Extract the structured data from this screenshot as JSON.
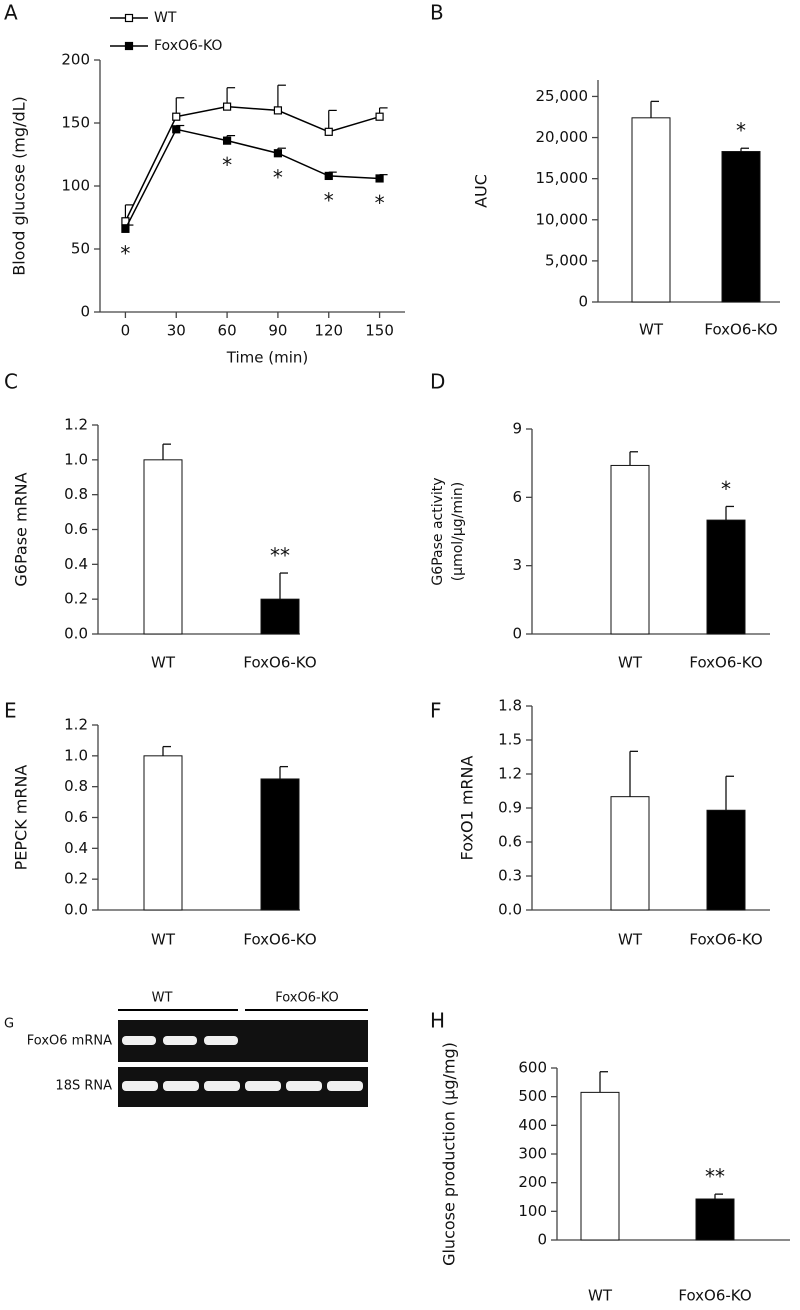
{
  "chart_data": [
    {
      "type": "line",
      "panel_label": "A",
      "ylabel": "Blood glucose (mg/dL)",
      "xlabel": "Time (min)",
      "x": [
        0,
        30,
        60,
        90,
        120,
        150
      ],
      "xlim": [
        -15,
        165
      ],
      "xticks": [
        0,
        30,
        60,
        90,
        120,
        150
      ],
      "ylim": [
        0,
        200
      ],
      "yticks": [
        0,
        50,
        100,
        150,
        200
      ],
      "series": [
        {
          "name": "WT",
          "color": "#000000",
          "marker_fill": "#ffffff",
          "values": [
            72,
            155,
            163,
            160,
            143,
            155
          ],
          "errors": [
            13,
            15,
            15,
            20,
            17,
            7
          ]
        },
        {
          "name": "FoxO6-KO",
          "color": "#000000",
          "marker_fill": "#000000",
          "values": [
            66,
            145,
            136,
            126,
            108,
            106
          ],
          "errors": [
            3,
            3,
            4,
            4,
            3,
            3
          ],
          "annotations": [
            "*",
            null,
            "*",
            "*",
            "*",
            "*"
          ]
        }
      ]
    },
    {
      "type": "bar",
      "panel_label": "B",
      "ylabel": "AUC",
      "categories": [
        "WT",
        "FoxO6-KO"
      ],
      "colors": [
        "#ffffff",
        "#000000"
      ],
      "values": [
        22400,
        18300
      ],
      "errors": [
        2000,
        400
      ],
      "annotations": [
        null,
        "*"
      ],
      "ylim": [
        0,
        27000
      ],
      "yticks": [
        0,
        {
          "value": 5000,
          "label": "5,000"
        },
        {
          "value": 10000,
          "label": "10,000"
        },
        {
          "value": 15000,
          "label": "15,000"
        },
        {
          "value": 20000,
          "label": "20,000"
        },
        {
          "value": 25000,
          "label": "25,000"
        }
      ]
    },
    {
      "type": "bar",
      "panel_label": "C",
      "ylabel": "G6Pase mRNA",
      "categories": [
        "WT",
        "FoxO6-KO"
      ],
      "colors": [
        "#ffffff",
        "#000000"
      ],
      "values": [
        1.0,
        0.2
      ],
      "errors": [
        0.09,
        0.15
      ],
      "annotations": [
        null,
        "**"
      ],
      "ylim": [
        0,
        1.2
      ],
      "yticks": [
        {
          "value": 0,
          "label": "0.0"
        },
        0.2,
        0.4,
        0.6,
        0.8,
        {
          "value": 1,
          "label": "1.0"
        },
        1.2
      ]
    },
    {
      "type": "bar",
      "panel_label": "D",
      "ylabel": [
        "G6Pase activity",
        "(µmol/µg/min)"
      ],
      "categories": [
        "WT",
        "FoxO6-KO"
      ],
      "colors": [
        "#ffffff",
        "#000000"
      ],
      "values": [
        7.4,
        5.0
      ],
      "errors": [
        0.6,
        0.6
      ],
      "annotations": [
        null,
        "*"
      ],
      "ylim": [
        0,
        9
      ],
      "yticks": [
        0,
        3,
        6,
        9
      ]
    },
    {
      "type": "bar",
      "panel_label": "E",
      "ylabel": "PEPCK mRNA",
      "categories": [
        "WT",
        "FoxO6-KO"
      ],
      "colors": [
        "#ffffff",
        "#000000"
      ],
      "values": [
        1.0,
        0.85
      ],
      "errors": [
        0.06,
        0.08
      ],
      "ylim": [
        0,
        1.2
      ],
      "yticks": [
        {
          "value": 0,
          "label": "0.0"
        },
        0.2,
        0.4,
        0.6,
        0.8,
        {
          "value": 1,
          "label": "1.0"
        },
        1.2
      ]
    },
    {
      "type": "bar",
      "panel_label": "F",
      "ylabel": "FoxO1 mRNA",
      "categories": [
        "WT",
        "FoxO6-KO"
      ],
      "colors": [
        "#ffffff",
        "#000000"
      ],
      "values": [
        1.0,
        0.88
      ],
      "errors": [
        0.4,
        0.3
      ],
      "ylim": [
        0,
        1.8
      ],
      "yticks": [
        {
          "value": 0,
          "label": "0.0"
        },
        0.3,
        0.6,
        0.9,
        1.2,
        1.5,
        1.8
      ]
    },
    {
      "type": "bar",
      "panel_label": "H",
      "ylabel": "Glucose production (µg/mg)",
      "categories": [
        "WT",
        "FoxO6-KO"
      ],
      "colors": [
        "#ffffff",
        "#000000"
      ],
      "values": [
        515,
        143
      ],
      "errors": [
        72,
        17
      ],
      "annotations": [
        null,
        "**"
      ],
      "ylim": [
        0,
        600
      ],
      "yticks": [
        0,
        100,
        200,
        300,
        400,
        500,
        600
      ]
    }
  ],
  "gel": {
    "panel_label": "G",
    "groups": [
      "WT",
      "FoxO6-KO"
    ],
    "rows": [
      "FoxO6 mRNA",
      "18S RNA"
    ]
  }
}
